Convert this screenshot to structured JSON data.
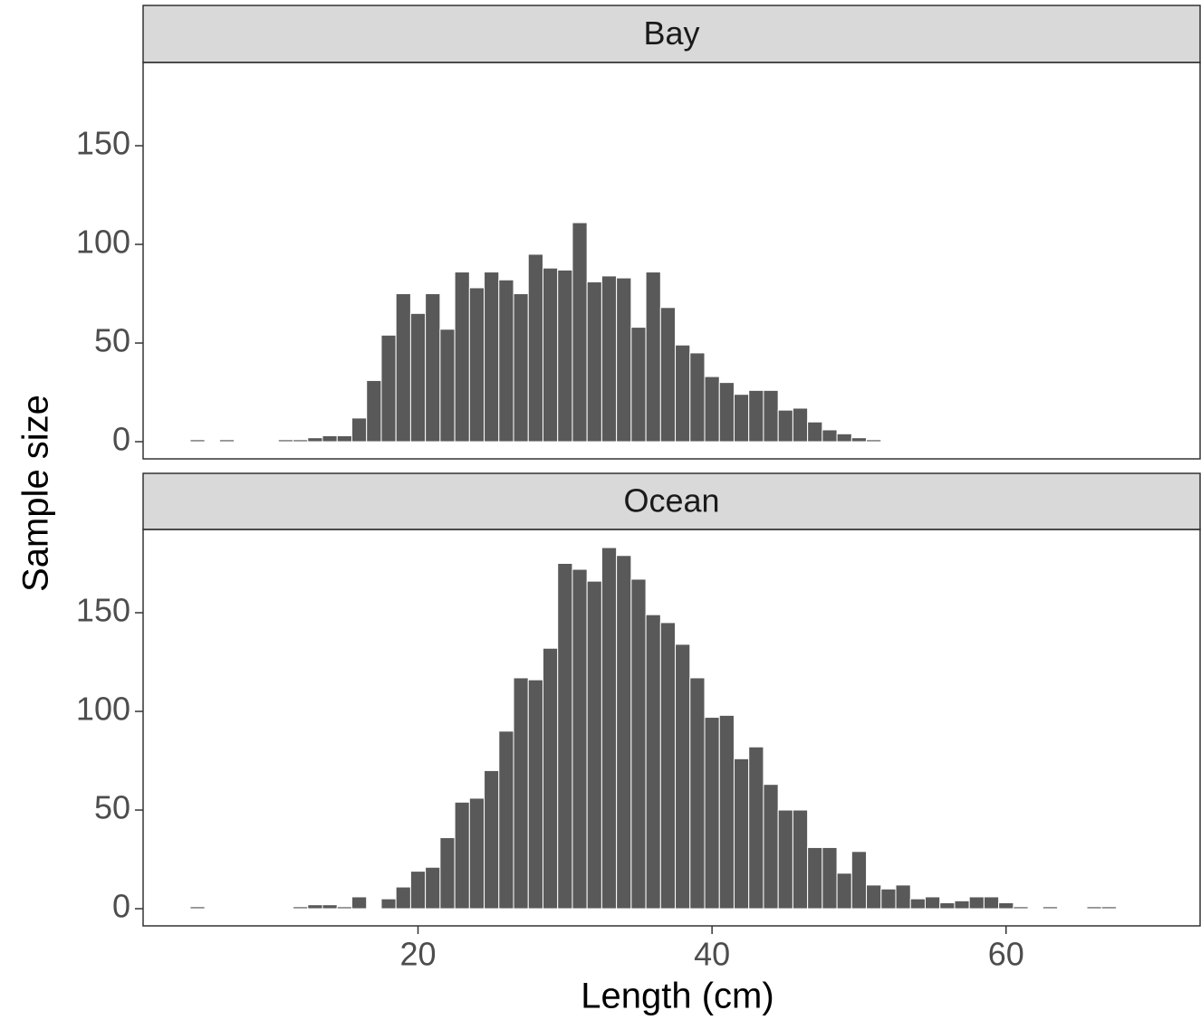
{
  "chart_data": {
    "type": "histogram",
    "xlabel": "Length (cm)",
    "ylabel": "Sample size",
    "xlim": [
      1.3,
      73.2
    ],
    "xticks": [
      20,
      40,
      60
    ],
    "ylim": [
      -8.7,
      192.2
    ],
    "yticks": [
      0,
      50,
      100,
      150
    ],
    "color": "#595959",
    "bins": [
      4.5,
      5.5,
      6.5,
      7.5,
      8.5,
      9.5,
      10.5,
      11.5,
      12.5,
      13.5,
      14.5,
      15.5,
      16.5,
      17.5,
      18.5,
      19.5,
      20.5,
      21.5,
      22.5,
      23.5,
      24.5,
      25.5,
      26.5,
      27.5,
      28.5,
      29.5,
      30.5,
      31.5,
      32.5,
      33.5,
      34.5,
      35.5,
      36.5,
      37.5,
      38.5,
      39.5,
      40.5,
      41.5,
      42.5,
      43.5,
      44.5,
      45.5,
      46.5,
      47.5,
      48.5,
      49.5,
      50.5,
      51.5,
      52.5,
      53.5,
      54.5,
      55.5,
      56.5,
      57.5,
      58.5,
      59.5,
      60.5,
      61.5,
      62.5,
      63.5,
      64.5,
      65.5,
      66.5,
      67.5
    ],
    "facets": [
      {
        "title": "Bay",
        "counts": [
          1,
          0,
          1,
          0,
          0,
          0,
          1,
          1,
          2,
          3,
          3,
          12,
          31,
          54,
          75,
          65,
          75,
          57,
          86,
          78,
          86,
          82,
          75,
          95,
          88,
          87,
          111,
          81,
          84,
          83,
          58,
          86,
          68,
          49,
          45,
          33,
          30,
          24,
          26,
          26,
          16,
          17,
          10,
          6,
          4,
          2,
          1,
          0,
          0,
          0,
          0,
          0,
          0,
          0,
          0,
          0,
          0,
          0,
          0,
          0,
          0,
          0,
          0
        ]
      },
      {
        "title": "Ocean",
        "counts": [
          1,
          0,
          0,
          0,
          0,
          0,
          0,
          1,
          2,
          2,
          1,
          6,
          0,
          5,
          11,
          19,
          21,
          36,
          54,
          56,
          70,
          90,
          117,
          116,
          132,
          175,
          172,
          166,
          183,
          179,
          167,
          149,
          145,
          134,
          117,
          97,
          98,
          76,
          82,
          63,
          50,
          50,
          31,
          31,
          18,
          29,
          12,
          10,
          12,
          5,
          6,
          3,
          4,
          6,
          6,
          3,
          1,
          0,
          1,
          0,
          0,
          1,
          1
        ]
      }
    ]
  }
}
